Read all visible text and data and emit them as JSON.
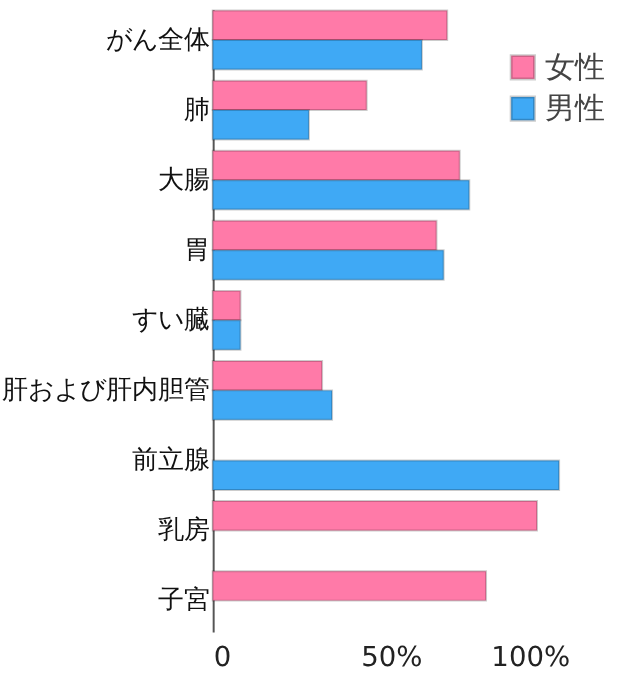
{
  "chart_data": {
    "type": "bar",
    "orientation": "horizontal",
    "categories": [
      "がん全体",
      "肺",
      "大腸",
      "胃",
      "すい臓",
      "肝および肝内胆管",
      "前立腺",
      "乳房",
      "子宮"
    ],
    "series": [
      {
        "name": "女性",
        "color": "#ff7aa8",
        "values": [
          65.8,
          43.2,
          69.3,
          62.8,
          7.8,
          30.7,
          null,
          91,
          76.7
        ]
      },
      {
        "name": "男性",
        "color": "#3fa9f5",
        "values": [
          58.7,
          27,
          72,
          64.8,
          7.8,
          33.5,
          97.2,
          null,
          null
        ]
      }
    ],
    "xlim": [
      0,
      100
    ],
    "xticks": [
      {
        "value": 0,
        "label": "0"
      },
      {
        "value": 50,
        "label": "50%"
      },
      {
        "value": 100,
        "label": "100%"
      }
    ],
    "grid": false,
    "legend": "top right"
  }
}
